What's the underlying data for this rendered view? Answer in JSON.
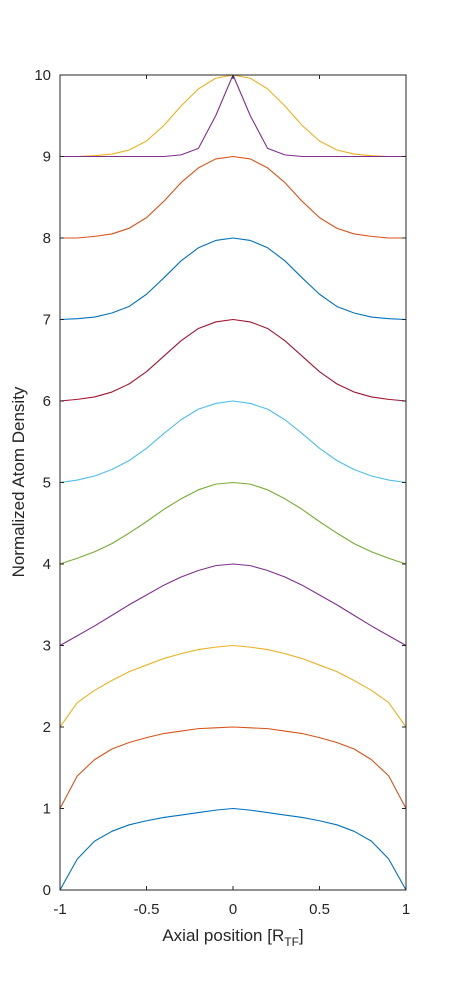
{
  "chart_data": {
    "type": "line",
    "title": "",
    "xlabel": "Axial position [R",
    "xlabel_sub": "TF",
    "xlabel_close": "]",
    "ylabel": "Normalized Atom Density",
    "xlim": [
      -1,
      1
    ],
    "ylim": [
      0,
      10
    ],
    "grid": false,
    "x_ticks": [
      -1,
      -0.5,
      0,
      0.5,
      1
    ],
    "x_tick_labels": [
      "-1",
      "-0.5",
      "0",
      "0.5",
      "1"
    ],
    "y_ticks": [
      0,
      1,
      2,
      3,
      4,
      5,
      6,
      7,
      8,
      9,
      10
    ],
    "y_tick_labels": [
      "0",
      "1",
      "2",
      "3",
      "4",
      "5",
      "6",
      "7",
      "8",
      "9",
      "10"
    ],
    "x": [
      -1,
      -0.9,
      -0.8,
      -0.7,
      -0.6,
      -0.5,
      -0.4,
      -0.3,
      -0.2,
      -0.1,
      0,
      0.1,
      0.2,
      0.3,
      0.4,
      0.5,
      0.6,
      0.7,
      0.8,
      0.9,
      1
    ],
    "series": [
      {
        "color": "#0072BD",
        "offset": 0,
        "values": [
          0,
          0.38,
          0.6,
          0.72,
          0.8,
          0.85,
          0.89,
          0.92,
          0.95,
          0.98,
          1.0,
          0.98,
          0.95,
          0.92,
          0.89,
          0.85,
          0.8,
          0.72,
          0.6,
          0.38,
          0
        ]
      },
      {
        "color": "#D95319",
        "offset": 1,
        "values": [
          1.0,
          1.4,
          1.6,
          1.73,
          1.81,
          1.87,
          1.92,
          1.95,
          1.98,
          1.99,
          2.0,
          1.99,
          1.98,
          1.95,
          1.92,
          1.87,
          1.81,
          1.73,
          1.6,
          1.4,
          1.0
        ]
      },
      {
        "color": "#EDB120",
        "offset": 2,
        "values": [
          2.0,
          2.3,
          2.45,
          2.57,
          2.68,
          2.76,
          2.84,
          2.9,
          2.95,
          2.98,
          3.0,
          2.98,
          2.95,
          2.9,
          2.84,
          2.76,
          2.68,
          2.57,
          2.45,
          2.3,
          2.0
        ]
      },
      {
        "color": "#7E2F8E",
        "offset": 3,
        "values": [
          3.0,
          3.12,
          3.24,
          3.37,
          3.5,
          3.62,
          3.74,
          3.84,
          3.92,
          3.98,
          4.0,
          3.98,
          3.92,
          3.84,
          3.74,
          3.62,
          3.5,
          3.37,
          3.24,
          3.12,
          3.0
        ]
      },
      {
        "color": "#77AC30",
        "offset": 4,
        "values": [
          4.0,
          4.07,
          4.15,
          4.25,
          4.38,
          4.52,
          4.67,
          4.8,
          4.91,
          4.98,
          5.0,
          4.98,
          4.91,
          4.8,
          4.67,
          4.52,
          4.38,
          4.25,
          4.15,
          4.07,
          4.0
        ]
      },
      {
        "color": "#4DBEEE",
        "offset": 5,
        "values": [
          5.0,
          5.03,
          5.08,
          5.16,
          5.27,
          5.42,
          5.6,
          5.77,
          5.9,
          5.97,
          6.0,
          5.97,
          5.9,
          5.77,
          5.6,
          5.42,
          5.27,
          5.16,
          5.08,
          5.03,
          5.0
        ]
      },
      {
        "color": "#A2142F",
        "offset": 6,
        "values": [
          6.0,
          6.02,
          6.05,
          6.11,
          6.21,
          6.36,
          6.55,
          6.74,
          6.89,
          6.97,
          7.0,
          6.97,
          6.89,
          6.74,
          6.55,
          6.36,
          6.21,
          6.11,
          6.05,
          6.02,
          6.0
        ]
      },
      {
        "color": "#0072BD",
        "offset": 7,
        "values": [
          7.0,
          7.01,
          7.03,
          7.08,
          7.16,
          7.31,
          7.51,
          7.72,
          7.88,
          7.97,
          8.0,
          7.97,
          7.88,
          7.72,
          7.51,
          7.31,
          7.16,
          7.08,
          7.03,
          7.01,
          7.0
        ]
      },
      {
        "color": "#D95319",
        "offset": 8,
        "values": [
          8.0,
          8.0,
          8.02,
          8.05,
          8.12,
          8.25,
          8.45,
          8.68,
          8.86,
          8.97,
          9.0,
          8.97,
          8.86,
          8.68,
          8.45,
          8.25,
          8.12,
          8.05,
          8.02,
          8.0,
          8.0
        ]
      },
      {
        "color": "#EDB120",
        "offset": 9,
        "values": [
          9.0,
          9.0,
          9.01,
          9.03,
          9.08,
          9.19,
          9.38,
          9.62,
          9.83,
          9.96,
          10.0,
          9.96,
          9.83,
          9.62,
          9.38,
          9.19,
          9.08,
          9.03,
          9.01,
          9.0,
          9.0
        ]
      },
      {
        "color": "#7E2F8E",
        "offset": 9,
        "values": [
          9.0,
          9.0,
          9.0,
          9.0,
          9.0,
          9.0,
          9.0,
          9.02,
          9.1,
          9.5,
          10.0,
          9.5,
          9.1,
          9.02,
          9.0,
          9.0,
          9.0,
          9.0,
          9.0,
          9.0,
          9.0
        ]
      }
    ]
  }
}
